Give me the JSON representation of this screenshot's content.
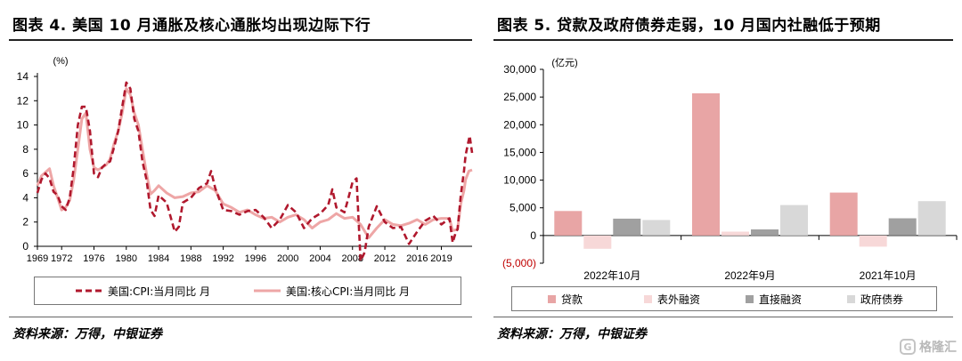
{
  "left": {
    "title": "图表 4. 美国 10 月通胀及核心通胀均出现边际下行",
    "source": "资料来源：万得，中银证券"
  },
  "right": {
    "title": "图表 5. 贷款及政府债券走弱，10 月国内社融低于预期",
    "source": "资料来源：万得，中银证券"
  },
  "watermark": {
    "logo": "G",
    "text": "格隆汇"
  },
  "colors": {
    "cpi": "#b0182d",
    "core_cpi": "#eea6a6",
    "loans": "#e8a5a5",
    "offbalance": "#f7d8d8",
    "direct": "#a0a0a0",
    "gov": "#d8d8d8"
  },
  "chart_data": [
    {
      "type": "line",
      "unit": "(%)",
      "ylim": [
        0,
        14
      ],
      "yticks": [
        "0",
        "2",
        "4",
        "6",
        "8",
        "10",
        "12",
        "14"
      ],
      "xlim": [
        1969,
        2022.8
      ],
      "xticks": [
        "1969",
        "1972",
        "1976",
        "1980",
        "1984",
        "1988",
        "1992",
        "1996",
        "2000",
        "2004",
        "2008",
        "2012",
        "2016",
        "2019"
      ],
      "series": [
        {
          "name": "美国:CPI:当月同比 月",
          "style": "dashed",
          "color": "#b0182d",
          "x": [
            1969,
            1969.5,
            1970,
            1970.5,
            1971,
            1971.5,
            1972,
            1972.5,
            1973,
            1973.5,
            1974,
            1974.5,
            1975,
            1975.5,
            1976,
            1976.5,
            1977,
            1977.5,
            1978,
            1978.5,
            1979,
            1979.5,
            1980,
            1980.5,
            1981,
            1981.5,
            1982,
            1982.5,
            1983,
            1983.5,
            1984,
            1985,
            1986,
            1986.5,
            1987,
            1988,
            1989,
            1990,
            1990.5,
            1991,
            1992,
            1993,
            1994,
            1995,
            1996,
            1997,
            1998,
            1999,
            2000,
            2001,
            2002,
            2003,
            2004,
            2005,
            2005.5,
            2006,
            2007,
            2007.5,
            2008,
            2008.5,
            2009,
            2009.5,
            2010,
            2011,
            2012,
            2013,
            2014,
            2015,
            2016,
            2017,
            2018,
            2019,
            2020,
            2020.4,
            2020.8,
            2021,
            2021.4,
            2021.8,
            2022,
            2022.3,
            2022.5,
            2022.8
          ],
          "values": [
            4.4,
            5.5,
            6.0,
            5.6,
            4.5,
            4.2,
            3.3,
            3.0,
            4.0,
            6.5,
            10.0,
            11.5,
            11.5,
            9.5,
            6.0,
            5.7,
            6.5,
            6.8,
            7.0,
            8.2,
            9.5,
            11.5,
            13.5,
            13.0,
            10.5,
            9.5,
            7.0,
            5.5,
            3.0,
            2.5,
            4.2,
            3.6,
            1.2,
            1.6,
            3.6,
            4.0,
            4.8,
            5.2,
            6.2,
            4.8,
            3.0,
            2.9,
            2.6,
            2.9,
            3.0,
            2.4,
            1.5,
            2.2,
            3.4,
            2.8,
            1.5,
            2.3,
            2.7,
            3.4,
            4.7,
            3.2,
            2.8,
            4.0,
            5.3,
            5.6,
            -1.2,
            -0.5,
            1.6,
            3.3,
            2.0,
            1.5,
            1.6,
            0.2,
            1.2,
            2.1,
            2.5,
            1.8,
            2.3,
            0.3,
            1.2,
            1.4,
            4.2,
            6.2,
            7.5,
            8.5,
            9.1,
            7.7
          ]
        },
        {
          "name": "美国:核心CPI:当月同比 月",
          "style": "solid",
          "color": "#eea6a6",
          "x": [
            1969,
            1969.5,
            1970,
            1970.5,
            1971,
            1971.5,
            1972,
            1972.5,
            1973,
            1973.5,
            1974,
            1974.5,
            1975,
            1975.5,
            1976,
            1976.5,
            1977,
            1977.5,
            1978,
            1978.5,
            1979,
            1979.5,
            1980,
            1980.5,
            1981,
            1981.5,
            1982,
            1982.5,
            1983,
            1983.5,
            1984,
            1985,
            1986,
            1987,
            1988,
            1989,
            1990,
            1991,
            1992,
            1993,
            1994,
            1995,
            1996,
            1997,
            1998,
            1999,
            2000,
            2001,
            2002,
            2003,
            2004,
            2005,
            2006,
            2007,
            2008,
            2009,
            2010,
            2011,
            2012,
            2013,
            2014,
            2015,
            2016,
            2017,
            2018,
            2019,
            2020,
            2020.4,
            2021,
            2021.4,
            2021.8,
            2022,
            2022.4,
            2022.8
          ],
          "values": [
            5.0,
            5.8,
            6.1,
            6.4,
            5.0,
            4.0,
            3.0,
            3.2,
            3.8,
            5.5,
            8.0,
            10.5,
            11.0,
            8.0,
            6.5,
            6.3,
            6.5,
            6.7,
            7.2,
            8.5,
            9.5,
            11.0,
            13.0,
            12.5,
            11.0,
            10.0,
            8.0,
            6.0,
            4.3,
            4.6,
            5.0,
            4.4,
            4.0,
            4.1,
            4.4,
            4.5,
            5.0,
            4.6,
            3.5,
            3.2,
            2.8,
            3.0,
            2.6,
            2.3,
            2.4,
            2.0,
            2.4,
            2.6,
            2.2,
            1.5,
            2.0,
            2.2,
            2.7,
            2.3,
            2.4,
            1.8,
            0.7,
            1.5,
            2.2,
            1.8,
            1.7,
            1.9,
            2.2,
            1.8,
            2.2,
            2.3,
            2.3,
            1.3,
            1.4,
            3.5,
            4.6,
            5.5,
            6.2,
            6.3
          ]
        }
      ]
    },
    {
      "type": "bar",
      "unit": "(亿元)",
      "ylim": [
        -5000,
        30000
      ],
      "yticks": [
        "(5,000)",
        "0",
        "5,000",
        "10,000",
        "15,000",
        "20,000",
        "25,000",
        "30,000"
      ],
      "categories": [
        "2022年10月",
        "2022年9月",
        "2021年10月"
      ],
      "series": [
        {
          "name": "贷款",
          "color": "#e8a5a5",
          "values": [
            4431,
            25686,
            7752
          ]
        },
        {
          "name": "表外融资",
          "color": "#f7d8d8",
          "values": [
            -2400,
            700,
            -2000
          ]
        },
        {
          "name": "直接融资",
          "color": "#a0a0a0",
          "values": [
            3050,
            1100,
            3100
          ]
        },
        {
          "name": "政府债券",
          "color": "#d8d8d8",
          "values": [
            2800,
            5500,
            6200
          ]
        }
      ]
    }
  ]
}
